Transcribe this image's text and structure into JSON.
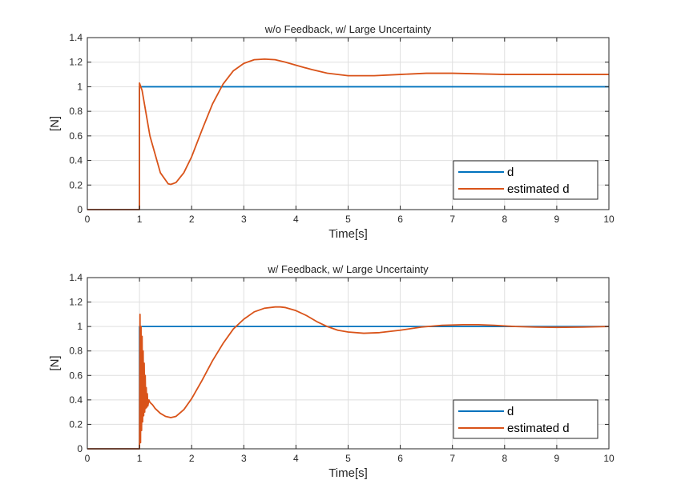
{
  "chart_data": [
    {
      "type": "line",
      "title": "w/o Feedback, w/ Large Uncertainty",
      "xlabel": "Time[s]",
      "ylabel": "[N]",
      "xlim": [
        0,
        10
      ],
      "ylim": [
        0,
        1.4
      ],
      "xticks": [
        0,
        1,
        2,
        3,
        4,
        5,
        6,
        7,
        8,
        9,
        10
      ],
      "xtick_labels": [
        "0",
        "1",
        "2",
        "3",
        "4",
        "5",
        "6",
        "7",
        "8",
        "9",
        "10"
      ],
      "yticks": [
        0,
        0.2,
        0.4,
        0.6,
        0.8,
        1,
        1.2,
        1.4
      ],
      "ytick_labels": [
        "0",
        "0.2",
        "0.4",
        "0.6",
        "0.8",
        "1",
        "1.2",
        "1.4"
      ],
      "grid": true,
      "legend_position": "bottom-right",
      "series": [
        {
          "name": "d",
          "color": "#0072BD",
          "x": [
            0,
            1,
            1,
            10
          ],
          "y": [
            0,
            0,
            1,
            1
          ]
        },
        {
          "name": "estimated d",
          "color": "#D95319",
          "x": [
            0,
            1,
            1,
            1.05,
            1.2,
            1.4,
            1.55,
            1.6,
            1.7,
            1.85,
            2.0,
            2.2,
            2.4,
            2.6,
            2.8,
            3.0,
            3.2,
            3.4,
            3.6,
            3.8,
            4.0,
            4.3,
            4.6,
            5.0,
            5.5,
            6.0,
            6.5,
            7.0,
            7.5,
            8.0,
            8.5,
            9.0,
            9.5,
            10.0
          ],
          "y": [
            0,
            0,
            1.03,
            0.97,
            0.6,
            0.3,
            0.21,
            0.205,
            0.22,
            0.3,
            0.43,
            0.65,
            0.86,
            1.02,
            1.13,
            1.19,
            1.22,
            1.225,
            1.22,
            1.2,
            1.175,
            1.14,
            1.11,
            1.09,
            1.09,
            1.1,
            1.11,
            1.11,
            1.105,
            1.1,
            1.1,
            1.1,
            1.1,
            1.1
          ]
        }
      ]
    },
    {
      "type": "line",
      "title": "w/ Feedback, w/ Large Uncertainty",
      "xlabel": "Time[s]",
      "ylabel": "[N]",
      "xlim": [
        0,
        10
      ],
      "ylim": [
        0,
        1.4
      ],
      "xticks": [
        0,
        1,
        2,
        3,
        4,
        5,
        6,
        7,
        8,
        9,
        10
      ],
      "xtick_labels": [
        "0",
        "1",
        "2",
        "3",
        "4",
        "5",
        "6",
        "7",
        "8",
        "9",
        "10"
      ],
      "yticks": [
        0,
        0.2,
        0.4,
        0.6,
        0.8,
        1,
        1.2,
        1.4
      ],
      "ytick_labels": [
        "0",
        "0.2",
        "0.4",
        "0.6",
        "0.8",
        "1",
        "1.2",
        "1.4"
      ],
      "grid": true,
      "legend_position": "bottom-right",
      "series": [
        {
          "name": "d",
          "color": "#0072BD",
          "x": [
            0,
            1,
            1,
            10
          ],
          "y": [
            0,
            0,
            1,
            1
          ]
        },
        {
          "name": "estimated d",
          "color": "#D95319",
          "x": [
            0,
            1.0,
            1.01,
            1.02,
            1.03,
            1.04,
            1.05,
            1.06,
            1.07,
            1.08,
            1.09,
            1.1,
            1.11,
            1.12,
            1.13,
            1.14,
            1.15,
            1.16,
            1.18,
            1.2,
            1.25,
            1.3,
            1.4,
            1.5,
            1.6,
            1.7,
            1.85,
            2.0,
            2.2,
            2.4,
            2.6,
            2.8,
            3.0,
            3.2,
            3.4,
            3.6,
            3.7,
            3.8,
            4.0,
            4.2,
            4.4,
            4.6,
            4.8,
            5.0,
            5.3,
            5.6,
            6.0,
            6.4,
            6.8,
            7.2,
            7.5,
            7.8,
            8.2,
            8.6,
            9.0,
            9.5,
            10.0
          ],
          "y": [
            0,
            0,
            1.1,
            0.05,
            1.0,
            0.15,
            0.92,
            0.22,
            0.8,
            0.27,
            0.7,
            0.3,
            0.6,
            0.33,
            0.5,
            0.34,
            0.45,
            0.35,
            0.4,
            0.38,
            0.36,
            0.33,
            0.29,
            0.265,
            0.255,
            0.265,
            0.32,
            0.41,
            0.56,
            0.72,
            0.86,
            0.98,
            1.06,
            1.12,
            1.15,
            1.16,
            1.16,
            1.155,
            1.13,
            1.09,
            1.04,
            1.0,
            0.97,
            0.955,
            0.945,
            0.95,
            0.97,
            0.995,
            1.01,
            1.015,
            1.015,
            1.01,
            1.0,
            0.995,
            0.993,
            0.995,
            1.0
          ]
        }
      ]
    }
  ]
}
